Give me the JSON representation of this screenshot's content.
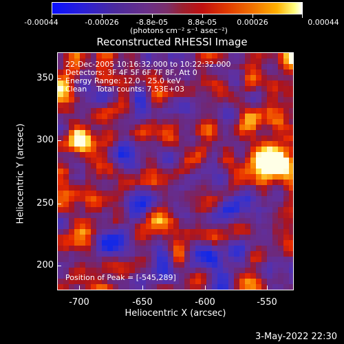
{
  "colorbar": {
    "tick_labels": [
      "-0.00044",
      "-0.00026",
      "-8.8e-05",
      "8.8e-05",
      "0.00026",
      "0.00044"
    ],
    "units": "(photons cm⁻² s⁻¹ asec⁻²)"
  },
  "title": "Reconstructed RHESSI Image",
  "annotations": {
    "time_range": "22-Dec-2005 10:16:32.000 to 10:22:32.000",
    "detectors": "Detectors: 3F 4F 5F 6F 7F 8F, Att 0",
    "energy_range": "Energy Range: 12.0 - 25.0 keV",
    "clean_counts": "Clean    Total counts: 7.53E+03",
    "peak_position": "Position of Peak = [-545,289]"
  },
  "axes": {
    "xlabel": "Heliocentric X (arcsec)",
    "ylabel": "Heliocentric Y (arcsec)",
    "x_ticks": [
      "-700",
      "-650",
      "-600",
      "-550"
    ],
    "y_ticks": [
      "350",
      "300",
      "250",
      "200"
    ]
  },
  "timestamp": "3-May-2022 22:30"
}
